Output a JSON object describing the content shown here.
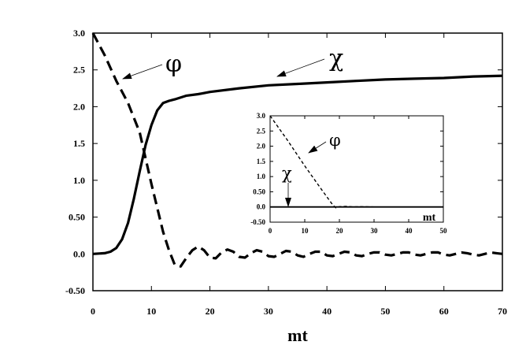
{
  "chart_data": [
    {
      "type": "line",
      "name": "main",
      "xlabel": "mt",
      "ylabel": "",
      "xlim": [
        0,
        70
      ],
      "ylim": [
        -0.5,
        3.0
      ],
      "x_ticks": [
        0,
        10,
        20,
        30,
        40,
        50,
        60,
        70
      ],
      "x_tick_labels": [
        "0",
        "10",
        "20",
        "30",
        "40",
        "50",
        "60",
        "70"
      ],
      "y_ticks": [
        3.0,
        2.5,
        2.0,
        1.5,
        1.0,
        0.5,
        0.0,
        -0.5
      ],
      "y_tick_labels": [
        "3.0",
        "2.5",
        "2.0",
        "1.5",
        "1.0",
        "0.50",
        "0.0",
        "-0.50"
      ],
      "series": [
        {
          "name": "φ",
          "style": "dashed",
          "x": [
            0,
            2,
            4,
            6,
            8,
            10,
            12,
            13,
            14,
            15,
            16,
            17,
            18,
            19,
            20,
            21,
            22,
            23,
            24,
            25,
            26,
            27,
            28,
            29,
            30,
            31,
            32,
            33,
            34,
            35,
            36,
            37,
            38,
            39,
            40,
            41,
            42,
            43,
            44,
            45,
            46,
            47,
            48,
            49,
            50,
            51,
            52,
            53,
            54,
            55,
            56,
            57,
            58,
            59,
            60,
            61,
            62,
            63,
            64,
            65,
            66,
            67,
            68,
            69,
            70
          ],
          "y": [
            3.0,
            2.7,
            2.35,
            2.05,
            1.65,
            0.95,
            0.3,
            0.05,
            -0.15,
            -0.17,
            -0.05,
            0.05,
            0.1,
            0.05,
            -0.05,
            -0.06,
            0.02,
            0.06,
            0.03,
            -0.04,
            -0.05,
            0.01,
            0.05,
            0.03,
            -0.03,
            -0.04,
            0.0,
            0.04,
            0.03,
            -0.02,
            -0.04,
            0.0,
            0.03,
            0.03,
            -0.02,
            -0.03,
            0.0,
            0.03,
            0.02,
            -0.02,
            -0.03,
            0.0,
            0.02,
            0.02,
            -0.01,
            -0.02,
            0.0,
            0.02,
            0.02,
            -0.01,
            -0.02,
            0.0,
            0.02,
            0.02,
            -0.01,
            -0.02,
            0.0,
            0.02,
            0.01,
            -0.01,
            -0.02,
            0.0,
            0.02,
            0.01,
            0.0
          ]
        },
        {
          "name": "χ",
          "style": "solid",
          "x": [
            0,
            2,
            3,
            4,
            5,
            6,
            7,
            8,
            9,
            10,
            11,
            12,
            13,
            14,
            16,
            18,
            20,
            25,
            30,
            35,
            40,
            45,
            50,
            55,
            60,
            65,
            70
          ],
          "y": [
            0.0,
            0.01,
            0.03,
            0.08,
            0.2,
            0.42,
            0.75,
            1.12,
            1.48,
            1.75,
            1.95,
            2.05,
            2.08,
            2.1,
            2.15,
            2.17,
            2.2,
            2.25,
            2.29,
            2.31,
            2.33,
            2.35,
            2.37,
            2.38,
            2.39,
            2.41,
            2.42
          ]
        }
      ],
      "annotations": [
        {
          "text": "φ",
          "points_to": "φ curve"
        },
        {
          "text": "χ",
          "points_to": "χ curve"
        }
      ]
    },
    {
      "type": "line",
      "name": "inset",
      "xlabel": "mt",
      "ylabel": "",
      "xlim": [
        0,
        50
      ],
      "ylim": [
        -0.5,
        3.0
      ],
      "x_ticks": [
        0,
        10,
        20,
        30,
        40,
        50
      ],
      "x_tick_labels": [
        "0",
        "10",
        "20",
        "30",
        "40",
        "50"
      ],
      "y_ticks": [
        3.0,
        2.5,
        2.0,
        1.5,
        1.0,
        0.5,
        0.0,
        -0.5
      ],
      "y_tick_labels": [
        "3.0",
        "2.5",
        "2.0",
        "1.5",
        "1.0",
        "0.50",
        "0.0",
        "-0.50"
      ],
      "series": [
        {
          "name": "φ",
          "style": "dashed",
          "x": [
            0,
            5,
            10,
            15,
            18,
            19,
            20,
            22,
            24,
            26,
            30,
            35,
            40,
            45,
            50
          ],
          "y": [
            3.0,
            2.2,
            1.35,
            0.55,
            0.08,
            -0.03,
            0.01,
            0.02,
            0.0,
            0.01,
            0.0,
            0.0,
            0.0,
            0.0,
            0.0
          ]
        },
        {
          "name": "χ",
          "style": "solid",
          "x": [
            0,
            10,
            20,
            30,
            40,
            50
          ],
          "y": [
            0.0,
            0.0,
            0.0,
            0.0,
            0.0,
            0.0
          ]
        }
      ],
      "annotations": [
        {
          "text": "φ",
          "points_to": "φ curve"
        },
        {
          "text": "χ",
          "points_to": "χ curve"
        }
      ]
    }
  ]
}
